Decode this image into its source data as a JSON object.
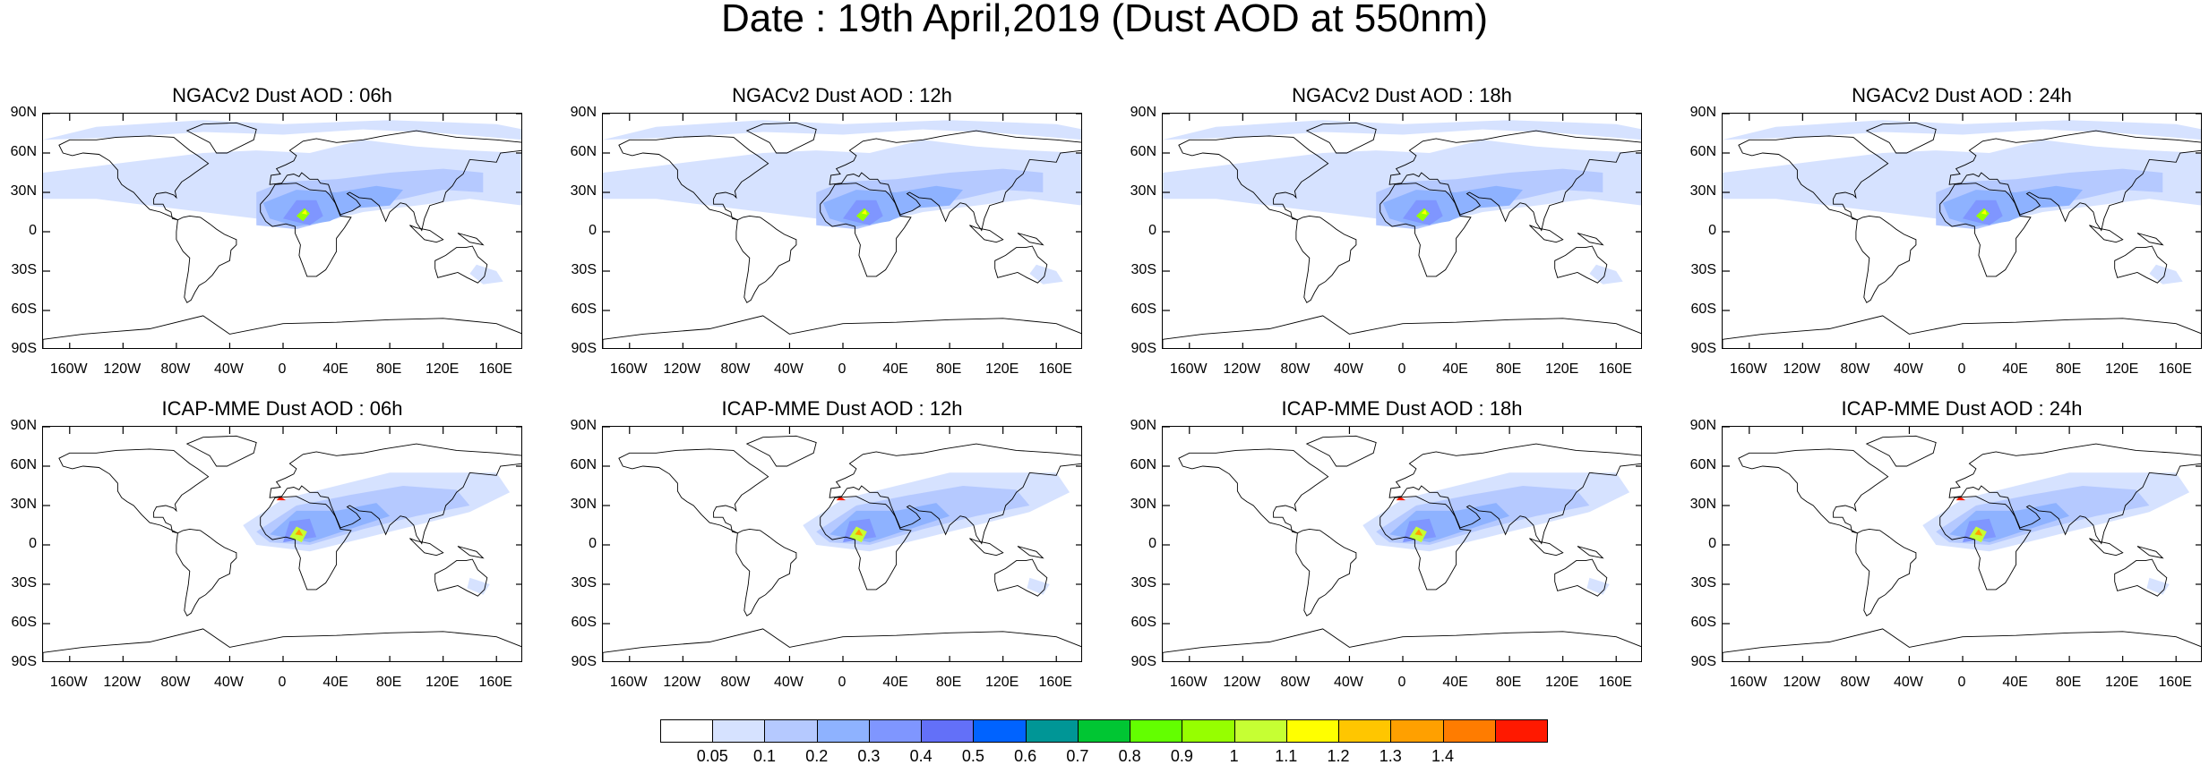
{
  "title": "Date : 19th April,2019 (Dust AOD at 550nm)",
  "lat_ticks": [
    "90N",
    "60N",
    "30N",
    "0",
    "30S",
    "60S",
    "90S"
  ],
  "lon_ticks": [
    "160W",
    "120W",
    "80W",
    "40W",
    "0",
    "40E",
    "80E",
    "120E",
    "160E"
  ],
  "panels": [
    {
      "title": "NGACv2 Dust AOD : 06h",
      "model": "NGACv2",
      "lead": "06h"
    },
    {
      "title": "NGACv2 Dust AOD : 12h",
      "model": "NGACv2",
      "lead": "12h"
    },
    {
      "title": "NGACv2 Dust AOD : 18h",
      "model": "NGACv2",
      "lead": "18h"
    },
    {
      "title": "NGACv2 Dust AOD : 24h",
      "model": "NGACv2",
      "lead": "24h"
    },
    {
      "title": "ICAP-MME Dust AOD : 06h",
      "model": "ICAP-MME",
      "lead": "06h"
    },
    {
      "title": "ICAP-MME Dust AOD : 12h",
      "model": "ICAP-MME",
      "lead": "12h"
    },
    {
      "title": "ICAP-MME Dust AOD : 18h",
      "model": "ICAP-MME",
      "lead": "18h"
    },
    {
      "title": "ICAP-MME Dust AOD : 24h",
      "model": "ICAP-MME",
      "lead": "24h"
    }
  ],
  "colorbar": {
    "labels": [
      "0.05",
      "0.1",
      "0.2",
      "0.3",
      "0.4",
      "0.5",
      "0.6",
      "0.7",
      "0.8",
      "0.9",
      "1",
      "1.1",
      "1.2",
      "1.3",
      "1.4"
    ],
    "colors": [
      "#ffffff",
      "#d6e2ff",
      "#b5c9ff",
      "#8eb2ff",
      "#7f96ff",
      "#6370f8",
      "#0063ff",
      "#009696",
      "#00c633",
      "#63ff00",
      "#96ff00",
      "#c6ff33",
      "#ffff00",
      "#ffc600",
      "#ffa000",
      "#ff7c00",
      "#ff1900"
    ]
  }
}
